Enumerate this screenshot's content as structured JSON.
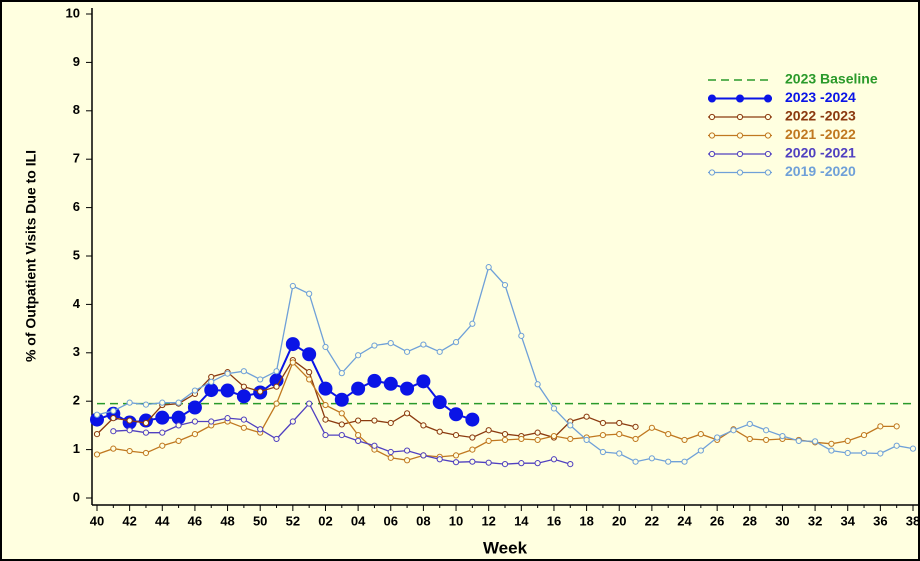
{
  "chart_data": {
    "type": "line",
    "ylabel": "% of Outpatient Visits Due to ILI",
    "xlabel": "Week",
    "categories": [
      "40",
      null,
      "42",
      null,
      "44",
      null,
      "46",
      null,
      "48",
      null,
      "50",
      null,
      "52",
      null,
      "02",
      null,
      "04",
      null,
      "06",
      null,
      "08",
      null,
      "10",
      null,
      "12",
      null,
      "14",
      null,
      "16",
      null,
      "18",
      null,
      "20",
      null,
      "22",
      null,
      "24",
      null,
      "26",
      null,
      "28",
      null,
      "30",
      null,
      "32",
      null,
      "34",
      null,
      "36",
      null,
      "38"
    ],
    "ylim": [
      0,
      10
    ],
    "yticks": [
      0,
      1,
      2,
      3,
      4,
      5,
      6,
      7,
      8,
      9,
      10
    ],
    "baseline": {
      "name": "2023 Baseline",
      "value": 1.95,
      "color": "#2a9a2a"
    },
    "series": [
      {
        "name": "2023 -2024",
        "color": "#0a14e6",
        "marker": "filled",
        "values": [
          1.62,
          1.74,
          1.56,
          1.6,
          1.66,
          1.66,
          1.87,
          2.23,
          2.22,
          2.1,
          2.18,
          2.43,
          3.18,
          2.97,
          2.26,
          2.03,
          2.26,
          2.42,
          2.36,
          2.26,
          2.41,
          1.98,
          1.73,
          1.62,
          null,
          null,
          null,
          null,
          null,
          null,
          null,
          null,
          null,
          null,
          null,
          null,
          null,
          null,
          null,
          null,
          null,
          null,
          null,
          null,
          null,
          null,
          null,
          null,
          null,
          null,
          null
        ]
      },
      {
        "name": "2022 -2023",
        "color": "#8b3a0f",
        "marker": "open",
        "values": [
          1.32,
          1.65,
          1.6,
          1.55,
          1.92,
          1.95,
          2.15,
          2.5,
          2.6,
          2.3,
          2.2,
          2.3,
          2.85,
          2.6,
          1.62,
          1.52,
          1.6,
          1.6,
          1.55,
          1.75,
          1.5,
          1.37,
          1.3,
          1.25,
          1.4,
          1.32,
          1.28,
          1.35,
          1.25,
          1.58,
          1.68,
          1.55,
          1.55,
          1.47,
          null,
          null,
          null,
          null,
          null,
          null,
          null,
          null,
          null,
          null,
          null,
          null,
          null,
          null,
          null,
          null,
          null
        ]
      },
      {
        "name": "2021 -2022",
        "color": "#c07820",
        "marker": "open",
        "values": [
          0.9,
          1.02,
          0.97,
          0.93,
          1.08,
          1.18,
          1.32,
          1.5,
          1.58,
          1.45,
          1.35,
          1.95,
          2.8,
          2.45,
          1.92,
          1.75,
          1.3,
          1.0,
          0.83,
          0.78,
          0.88,
          0.85,
          0.88,
          1.0,
          1.18,
          1.2,
          1.22,
          1.2,
          1.28,
          1.22,
          1.25,
          1.3,
          1.32,
          1.22,
          1.45,
          1.32,
          1.2,
          1.32,
          1.2,
          1.42,
          1.22,
          1.2,
          1.22,
          1.2,
          1.15,
          1.12,
          1.18,
          1.3,
          1.48,
          1.48,
          null
        ]
      },
      {
        "name": "2020 -2021",
        "color": "#5040c0",
        "marker": "open",
        "values": [
          null,
          1.38,
          1.4,
          1.35,
          1.35,
          1.5,
          1.58,
          1.58,
          1.65,
          1.62,
          1.42,
          1.22,
          1.58,
          1.95,
          1.3,
          1.3,
          1.18,
          1.08,
          0.95,
          0.98,
          0.88,
          0.8,
          0.74,
          0.75,
          0.73,
          0.7,
          0.72,
          0.72,
          0.8,
          0.7,
          null,
          null,
          null,
          null,
          null,
          null,
          null,
          null,
          null,
          null,
          null,
          null,
          null,
          null,
          null,
          null,
          null,
          null,
          null,
          null,
          null
        ]
      },
      {
        "name": "2019 -2020",
        "color": "#6fa0d8",
        "marker": "open",
        "values": [
          1.72,
          1.8,
          1.97,
          1.93,
          1.97,
          1.97,
          2.22,
          2.4,
          2.57,
          2.62,
          2.45,
          2.62,
          4.38,
          4.22,
          3.12,
          2.58,
          2.95,
          3.15,
          3.2,
          3.02,
          3.17,
          3.02,
          3.22,
          3.6,
          4.77,
          4.4,
          3.35,
          2.35,
          1.85,
          1.5,
          1.2,
          0.95,
          0.92,
          0.75,
          0.82,
          0.75,
          0.75,
          0.98,
          1.25,
          1.4,
          1.53,
          1.4,
          1.28,
          1.18,
          1.17,
          0.98,
          0.93,
          0.93,
          0.92,
          1.08,
          1.02
        ]
      }
    ]
  }
}
